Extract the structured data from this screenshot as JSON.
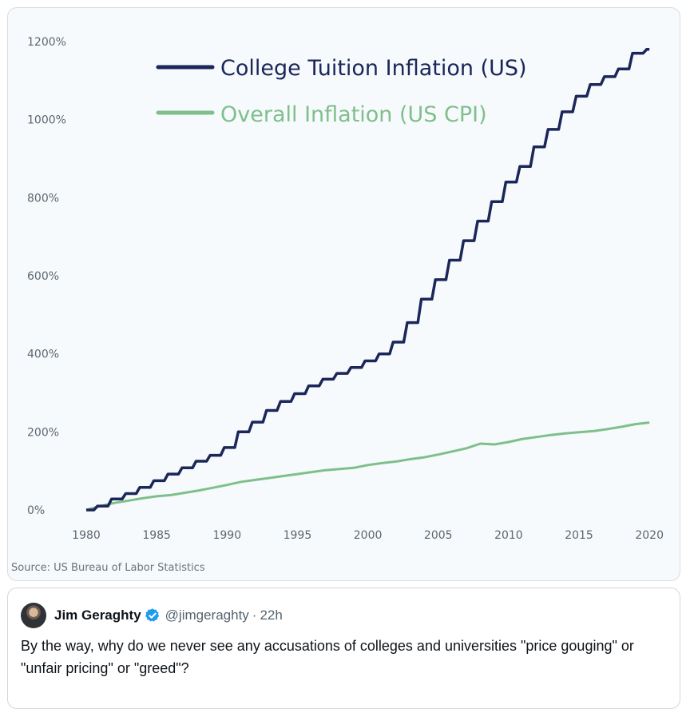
{
  "chart": {
    "source": "Source: US Bureau of Labor Statistics",
    "colors": {
      "tuition": "#1b2659",
      "cpi": "#7fbf8a",
      "grid": "#dfe5ea"
    }
  },
  "chart_data": {
    "type": "line",
    "title": "",
    "xlabel": "",
    "ylabel": "",
    "xlim": [
      1980,
      2020.5
    ],
    "ylim": [
      0,
      1200
    ],
    "x_ticks": [
      "1980",
      "1985",
      "1990",
      "1995",
      "2000",
      "2005",
      "2010",
      "2015",
      "2020"
    ],
    "y_ticks": [
      "0%",
      "200%",
      "400%",
      "600%",
      "800%",
      "1000%",
      "1200%"
    ],
    "legend_position": "top-left",
    "series": [
      {
        "name": "College Tuition Inflation (US)",
        "x": [
          1980,
          1981,
          1982,
          1983,
          1984,
          1985,
          1986,
          1987,
          1988,
          1989,
          1990,
          1991,
          1992,
          1993,
          1994,
          1995,
          1996,
          1997,
          1998,
          1999,
          2000,
          2001,
          2002,
          2003,
          2004,
          2005,
          2006,
          2007,
          2008,
          2009,
          2010,
          2011,
          2012,
          2013,
          2014,
          2015,
          2016,
          2017,
          2018,
          2019,
          2020
        ],
        "y": [
          0,
          10,
          28,
          42,
          58,
          75,
          92,
          108,
          125,
          140,
          160,
          200,
          225,
          255,
          278,
          298,
          318,
          335,
          350,
          365,
          382,
          400,
          430,
          480,
          540,
          590,
          640,
          690,
          740,
          790,
          840,
          880,
          930,
          975,
          1020,
          1060,
          1090,
          1110,
          1130,
          1170,
          1180
        ]
      },
      {
        "name": "Overall Inflation (US CPI)",
        "x": [
          1980,
          1981,
          1982,
          1983,
          1984,
          1985,
          1986,
          1987,
          1988,
          1989,
          1990,
          1991,
          1992,
          1993,
          1994,
          1995,
          1996,
          1997,
          1998,
          1999,
          2000,
          2001,
          2002,
          2003,
          2004,
          2005,
          2006,
          2007,
          2008,
          2009,
          2010,
          2011,
          2012,
          2013,
          2014,
          2015,
          2016,
          2017,
          2018,
          2019,
          2020
        ],
        "y": [
          0,
          10,
          18,
          24,
          30,
          35,
          38,
          44,
          50,
          57,
          64,
          72,
          77,
          82,
          87,
          92,
          97,
          102,
          105,
          108,
          115,
          120,
          124,
          130,
          135,
          142,
          150,
          158,
          170,
          168,
          174,
          182,
          187,
          192,
          196,
          199,
          202,
          207,
          213,
          220,
          224
        ]
      }
    ]
  },
  "tweet": {
    "author_name": "Jim Geraghty",
    "handle": "@jimgeraghty",
    "separator": "·",
    "time": "22h",
    "text": "By the way, why do we never see any accusations of colleges and universities \"price gouging\" or \"unfair pricing\" or \"greed\"?",
    "avatar_icon": "profile-photo",
    "verified_icon": "verified-badge-icon",
    "verified_color": "#1d9bf0"
  }
}
